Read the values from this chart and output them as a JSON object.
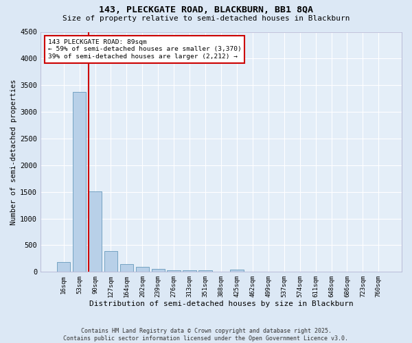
{
  "title1": "143, PLECKGATE ROAD, BLACKBURN, BB1 8QA",
  "title2": "Size of property relative to semi-detached houses in Blackburn",
  "xlabel": "Distribution of semi-detached houses by size in Blackburn",
  "ylabel": "Number of semi-detached properties",
  "footer1": "Contains HM Land Registry data © Crown copyright and database right 2025.",
  "footer2": "Contains public sector information licensed under the Open Government Licence v3.0.",
  "bin_labels": [
    "16sqm",
    "53sqm",
    "90sqm",
    "127sqm",
    "164sqm",
    "202sqm",
    "239sqm",
    "276sqm",
    "313sqm",
    "351sqm",
    "388sqm",
    "425sqm",
    "462sqm",
    "499sqm",
    "537sqm",
    "574sqm",
    "611sqm",
    "648sqm",
    "686sqm",
    "723sqm",
    "760sqm"
  ],
  "bar_values": [
    185,
    3370,
    1510,
    390,
    145,
    90,
    55,
    35,
    25,
    30,
    0,
    45,
    0,
    0,
    0,
    0,
    0,
    0,
    0,
    0,
    0
  ],
  "bar_color": "#b8d0e8",
  "bar_edge_color": "#6699bb",
  "property_label": "143 PLECKGATE ROAD: 89sqm",
  "arrow_left": "← 59% of semi-detached houses are smaller (3,370)",
  "arrow_right": "39% of semi-detached houses are larger (2,212) →",
  "vline_color": "#cc0000",
  "annotation_box_color": "#cc0000",
  "ylim": [
    0,
    4500
  ],
  "yticks": [
    0,
    500,
    1000,
    1500,
    2000,
    2500,
    3000,
    3500,
    4000,
    4500
  ],
  "background_color": "#dce8f5",
  "plot_bg_color": "#e4eef8",
  "grid_color": "#ffffff"
}
